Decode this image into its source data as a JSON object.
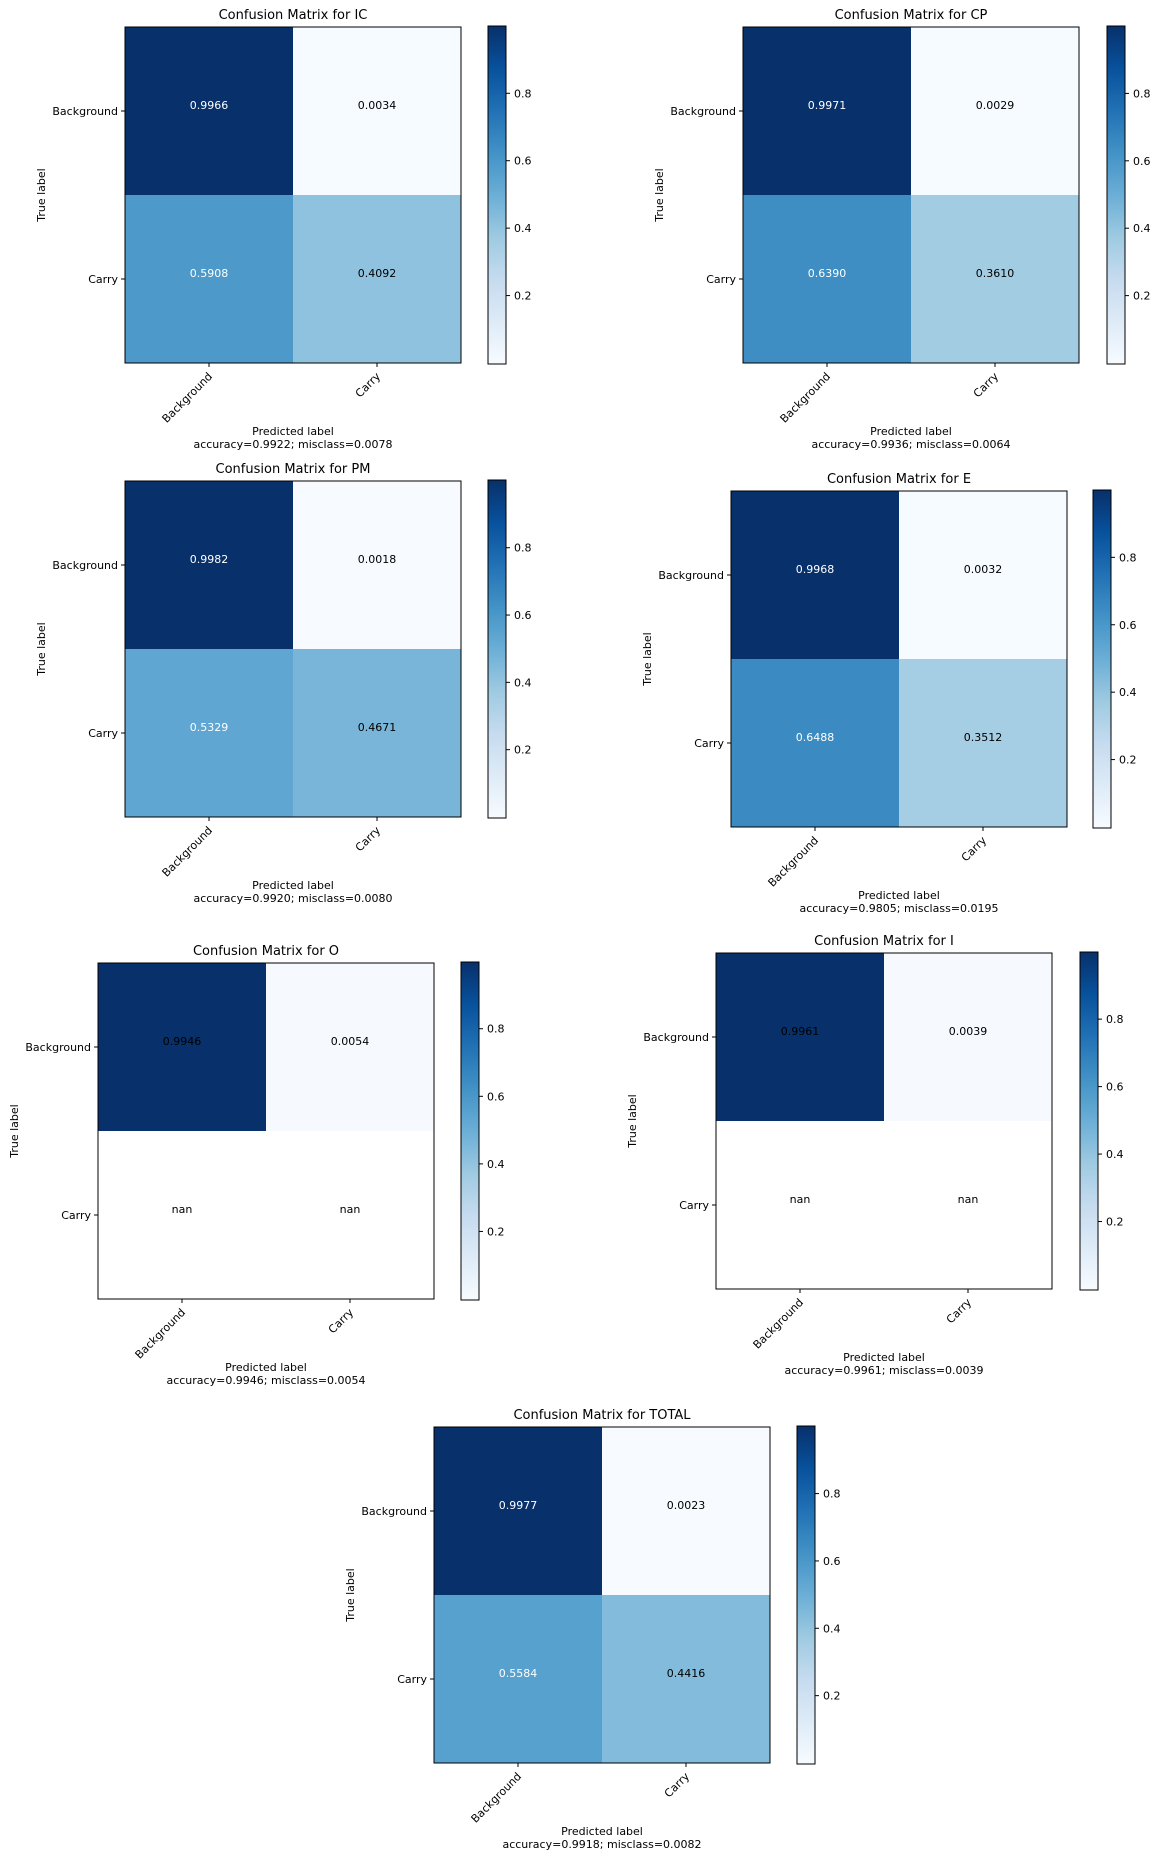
{
  "chart_data": [
    {
      "type": "heatmap",
      "title": "Confusion Matrix for IC",
      "xlabel": "Predicted label",
      "ylabel": "True label",
      "x_categories": [
        "Background",
        "Carry"
      ],
      "y_categories": [
        "Background",
        "Carry"
      ],
      "values": [
        [
          0.9966,
          0.0034
        ],
        [
          0.5908,
          0.4092
        ]
      ],
      "cell_labels": [
        [
          "0.9966",
          "0.0034"
        ],
        [
          "0.5908",
          "0.4092"
        ]
      ],
      "summary": "accuracy=0.9922; misclass=0.0078",
      "colorbar_ticks": [
        "0.2",
        "0.4",
        "0.6",
        "0.8"
      ],
      "colormap": "Blues"
    },
    {
      "type": "heatmap",
      "title": "Confusion Matrix for CP",
      "xlabel": "Predicted label",
      "ylabel": "True label",
      "x_categories": [
        "Background",
        "Carry"
      ],
      "y_categories": [
        "Background",
        "Carry"
      ],
      "values": [
        [
          0.9971,
          0.0029
        ],
        [
          0.639,
          0.361
        ]
      ],
      "cell_labels": [
        [
          "0.9971",
          "0.0029"
        ],
        [
          "0.6390",
          "0.3610"
        ]
      ],
      "summary": "accuracy=0.9936; misclass=0.0064",
      "colorbar_ticks": [
        "0.2",
        "0.4",
        "0.6",
        "0.8"
      ],
      "colormap": "Blues"
    },
    {
      "type": "heatmap",
      "title": "Confusion Matrix for PM",
      "xlabel": "Predicted label",
      "ylabel": "True label",
      "x_categories": [
        "Background",
        "Carry"
      ],
      "y_categories": [
        "Background",
        "Carry"
      ],
      "values": [
        [
          0.9982,
          0.0018
        ],
        [
          0.5329,
          0.4671
        ]
      ],
      "cell_labels": [
        [
          "0.9982",
          "0.0018"
        ],
        [
          "0.5329",
          "0.4671"
        ]
      ],
      "summary": "accuracy=0.9920; misclass=0.0080",
      "colorbar_ticks": [
        "0.2",
        "0.4",
        "0.6",
        "0.8"
      ],
      "colormap": "Blues"
    },
    {
      "type": "heatmap",
      "title": "Confusion Matrix for E",
      "xlabel": "Predicted label",
      "ylabel": "True label",
      "x_categories": [
        "Background",
        "Carry"
      ],
      "y_categories": [
        "Background",
        "Carry"
      ],
      "values": [
        [
          0.9968,
          0.0032
        ],
        [
          0.6488,
          0.3512
        ]
      ],
      "cell_labels": [
        [
          "0.9968",
          "0.0032"
        ],
        [
          "0.6488",
          "0.3512"
        ]
      ],
      "summary": "accuracy=0.9805; misclass=0.0195",
      "colorbar_ticks": [
        "0.2",
        "0.4",
        "0.6",
        "0.8"
      ],
      "colormap": "Blues"
    },
    {
      "type": "heatmap",
      "title": "Confusion Matrix for O",
      "xlabel": "Predicted label",
      "ylabel": "True label",
      "x_categories": [
        "Background",
        "Carry"
      ],
      "y_categories": [
        "Background",
        "Carry"
      ],
      "values": [
        [
          0.9946,
          0.0054
        ],
        [
          null,
          null
        ]
      ],
      "cell_labels": [
        [
          "0.9946",
          "0.0054"
        ],
        [
          "nan",
          "nan"
        ]
      ],
      "summary": "accuracy=0.9946; misclass=0.0054",
      "colorbar_ticks": [
        "0.2",
        "0.4",
        "0.6",
        "0.8"
      ],
      "colormap": "Blues"
    },
    {
      "type": "heatmap",
      "title": "Confusion Matrix for I",
      "xlabel": "Predicted label",
      "ylabel": "True label",
      "x_categories": [
        "Background",
        "Carry"
      ],
      "y_categories": [
        "Background",
        "Carry"
      ],
      "values": [
        [
          0.9961,
          0.0039
        ],
        [
          null,
          null
        ]
      ],
      "cell_labels": [
        [
          "0.9961",
          "0.0039"
        ],
        [
          "nan",
          "nan"
        ]
      ],
      "summary": "accuracy=0.9961; misclass=0.0039",
      "colorbar_ticks": [
        "0.2",
        "0.4",
        "0.6",
        "0.8"
      ],
      "colormap": "Blues"
    },
    {
      "type": "heatmap",
      "title": "Confusion Matrix for TOTAL",
      "xlabel": "Predicted label",
      "ylabel": "True label",
      "x_categories": [
        "Background",
        "Carry"
      ],
      "y_categories": [
        "Background",
        "Carry"
      ],
      "values": [
        [
          0.9977,
          0.0023
        ],
        [
          0.5584,
          0.4416
        ]
      ],
      "cell_labels": [
        [
          "0.9977",
          "0.0023"
        ],
        [
          "0.5584",
          "0.4416"
        ]
      ],
      "summary": "accuracy=0.9918; misclass=0.0082",
      "colorbar_ticks": [
        "0.2",
        "0.4",
        "0.6",
        "0.8"
      ],
      "colormap": "Blues"
    }
  ]
}
